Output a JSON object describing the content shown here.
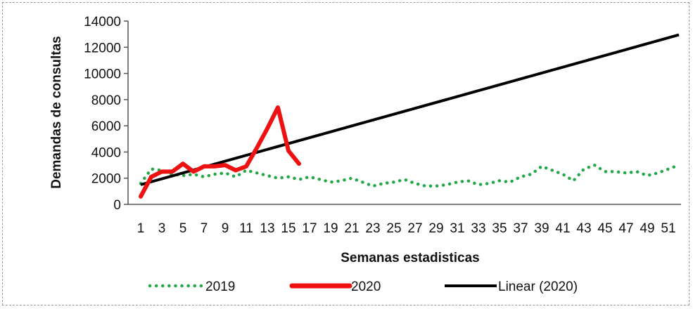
{
  "chart_data": {
    "type": "line",
    "title": "",
    "xlabel": "Semanas estadisticas",
    "ylabel": "Demandas de consultas",
    "ylim": [
      0,
      14000
    ],
    "yticks": [
      0,
      2000,
      4000,
      6000,
      8000,
      10000,
      12000,
      14000
    ],
    "ytick_labels": [
      "0",
      "2000",
      "4000",
      "6000",
      "8000",
      "10000",
      "12000",
      "14000"
    ],
    "xlim": [
      1,
      52
    ],
    "xtick_labels": [
      "1",
      "3",
      "5",
      "7",
      "9",
      "11",
      "13",
      "15",
      "17",
      "19",
      "21",
      "23",
      "25",
      "27",
      "29",
      "31",
      "33",
      "35",
      "37",
      "39",
      "41",
      "43",
      "45",
      "47",
      "49",
      "51"
    ],
    "grid": false,
    "legend_position": "bottom",
    "series": [
      {
        "name": "2019",
        "style": "dotted",
        "color": "#22a846",
        "x": [
          1,
          2,
          3,
          4,
          5,
          6,
          7,
          8,
          9,
          10,
          11,
          12,
          13,
          14,
          15,
          16,
          17,
          18,
          19,
          20,
          21,
          22,
          23,
          24,
          25,
          26,
          27,
          28,
          29,
          30,
          31,
          32,
          33,
          34,
          35,
          36,
          37,
          38,
          39,
          40,
          41,
          42,
          43,
          44,
          45,
          46,
          47,
          48,
          49,
          50,
          51,
          52
        ],
        "values": [
          1600,
          2700,
          2600,
          2300,
          2200,
          2300,
          2100,
          2300,
          2400,
          2100,
          2600,
          2400,
          2200,
          2000,
          2100,
          1900,
          2100,
          1900,
          1700,
          1800,
          2000,
          1700,
          1400,
          1600,
          1700,
          1900,
          1600,
          1400,
          1400,
          1500,
          1700,
          1800,
          1500,
          1600,
          1800,
          1700,
          2100,
          2300,
          2900,
          2600,
          2300,
          1800,
          2700,
          3000,
          2500,
          2500,
          2400,
          2500,
          2200,
          2400,
          2700,
          3000
        ]
      },
      {
        "name": "2020",
        "style": "solid",
        "color": "#ee1111",
        "x": [
          1,
          2,
          3,
          4,
          5,
          6,
          7,
          8,
          9,
          10,
          11,
          12,
          13,
          14,
          15,
          16
        ],
        "values": [
          600,
          2100,
          2500,
          2500,
          3100,
          2500,
          2900,
          2900,
          3000,
          2600,
          2900,
          4300,
          5800,
          7400,
          4100,
          3100
        ]
      },
      {
        "name": "Linear (2020)",
        "style": "solid",
        "color": "#000000",
        "x": [
          1,
          52
        ],
        "values": [
          1500,
          12950
        ]
      }
    ]
  }
}
